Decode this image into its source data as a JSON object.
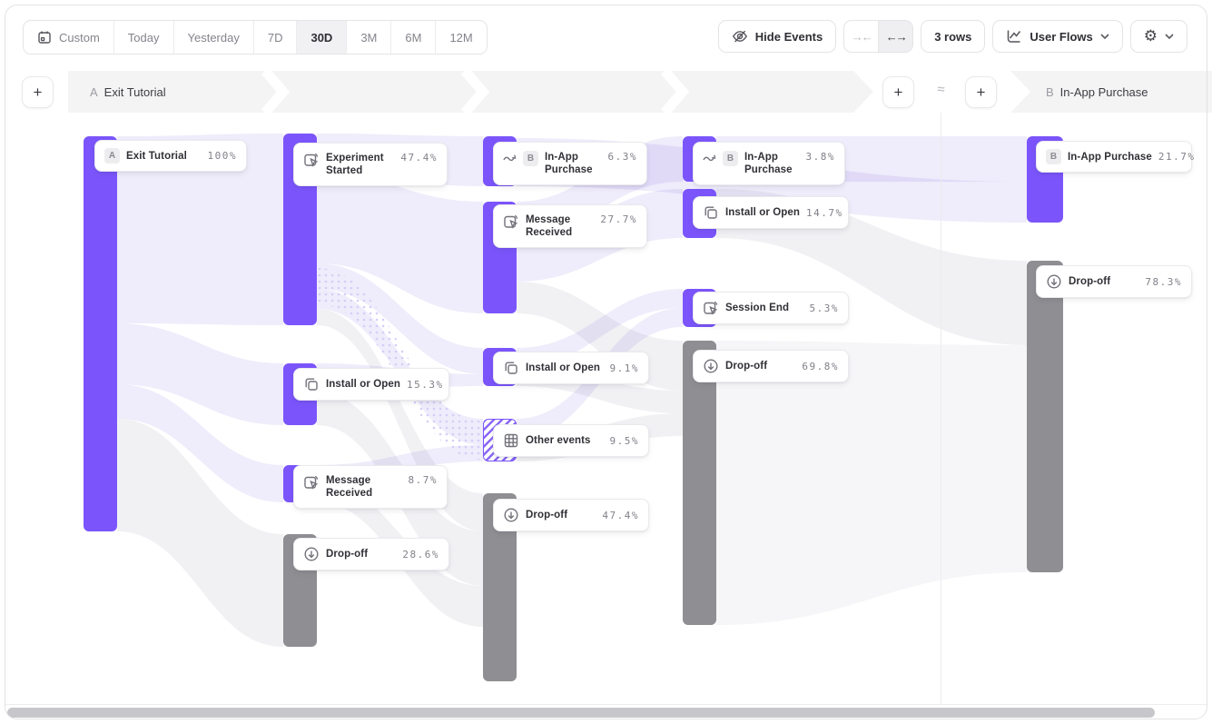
{
  "toolbar": {
    "date_ranges": [
      {
        "label": "Custom",
        "icon": "calendar-icon",
        "active": false
      },
      {
        "label": "Today",
        "active": false
      },
      {
        "label": "Yesterday",
        "active": false
      },
      {
        "label": "7D",
        "active": false
      },
      {
        "label": "30D",
        "active": true
      },
      {
        "label": "3M",
        "active": false
      },
      {
        "label": "6M",
        "active": false
      },
      {
        "label": "12M",
        "active": false
      }
    ],
    "hide_events": "Hide Events",
    "collapse_icon": "→←",
    "expand_icon": "←→",
    "rows": "3 rows",
    "view": "User Flows",
    "settings_icon": "⚙"
  },
  "header": {
    "flow_a_badge": "A",
    "flow_a_label": "Exit Tutorial",
    "flow_b_badge": "B",
    "flow_b_label": "In-App Purchase",
    "approx": "≈",
    "add": "+"
  },
  "nodes": {
    "a1": {
      "badge": "A",
      "label": "Exit Tutorial",
      "value": "100%"
    },
    "b1": {
      "label": "Experiment Started",
      "value": "47.4%"
    },
    "b2": {
      "label": "Install or Open",
      "value": "15.3%"
    },
    "b3": {
      "label": "Message Received",
      "value": "8.7%"
    },
    "b4": {
      "label": "Drop-off",
      "value": "28.6%"
    },
    "c1": {
      "badge": "B",
      "label": "In-App Purchase",
      "value": "6.3%"
    },
    "c2": {
      "label": "Message Received",
      "value": "27.7%"
    },
    "c3": {
      "label": "Install or Open",
      "value": "9.1%"
    },
    "c4": {
      "label": "Other events",
      "value": "9.5%"
    },
    "c5": {
      "label": "Drop-off",
      "value": "47.4%"
    },
    "d1": {
      "badge": "B",
      "label": "In-App Purchase",
      "value": "3.8%"
    },
    "d2": {
      "label": "Install or Open",
      "value": "14.7%"
    },
    "d3": {
      "label": "Session End",
      "value": "5.3%"
    },
    "d4": {
      "label": "Drop-off",
      "value": "69.8%"
    },
    "e1": {
      "badge": "B",
      "label": "In-App Purchase",
      "value": "21.7%"
    },
    "e2": {
      "label": "Drop-off",
      "value": "78.3%"
    }
  },
  "colors": {
    "event_bar": "#7b55fb",
    "dropoff_bar": "#8e8e93",
    "link": "#efecfb",
    "band": "#f4f4f5"
  },
  "chart_data": {
    "type": "sankey",
    "title": "User Flows — A: Exit Tutorial → B: In-App Purchase",
    "date_range": "30D",
    "rows_setting": "3 rows",
    "steps": [
      {
        "step": "A-1",
        "nodes": [
          {
            "label": "Exit Tutorial",
            "value_pct": 100,
            "kind": "start",
            "badge": "A"
          }
        ]
      },
      {
        "step": "A-2",
        "nodes": [
          {
            "label": "Experiment Started",
            "value_pct": 47.4,
            "kind": "event"
          },
          {
            "label": "Install or Open",
            "value_pct": 15.3,
            "kind": "event"
          },
          {
            "label": "Message Received",
            "value_pct": 8.7,
            "kind": "event"
          },
          {
            "label": "Drop-off",
            "value_pct": 28.6,
            "kind": "dropoff"
          }
        ]
      },
      {
        "step": "A-3",
        "nodes": [
          {
            "label": "In-App Purchase",
            "value_pct": 6.3,
            "kind": "jump-to-b",
            "badge": "B"
          },
          {
            "label": "Message Received",
            "value_pct": 27.7,
            "kind": "event"
          },
          {
            "label": "Install or Open",
            "value_pct": 9.1,
            "kind": "event"
          },
          {
            "label": "Other events",
            "value_pct": 9.5,
            "kind": "other"
          },
          {
            "label": "Drop-off",
            "value_pct": 47.4,
            "kind": "dropoff"
          }
        ]
      },
      {
        "step": "A-4",
        "nodes": [
          {
            "label": "In-App Purchase",
            "value_pct": 3.8,
            "kind": "jump-to-b",
            "badge": "B"
          },
          {
            "label": "Install or Open",
            "value_pct": 14.7,
            "kind": "event"
          },
          {
            "label": "Session End",
            "value_pct": 5.3,
            "kind": "event"
          },
          {
            "label": "Drop-off",
            "value_pct": 69.8,
            "kind": "dropoff"
          }
        ]
      },
      {
        "step": "B",
        "nodes": [
          {
            "label": "In-App Purchase",
            "value_pct": 21.7,
            "kind": "end",
            "badge": "B"
          },
          {
            "label": "Drop-off",
            "value_pct": 78.3,
            "kind": "dropoff"
          }
        ]
      }
    ]
  }
}
